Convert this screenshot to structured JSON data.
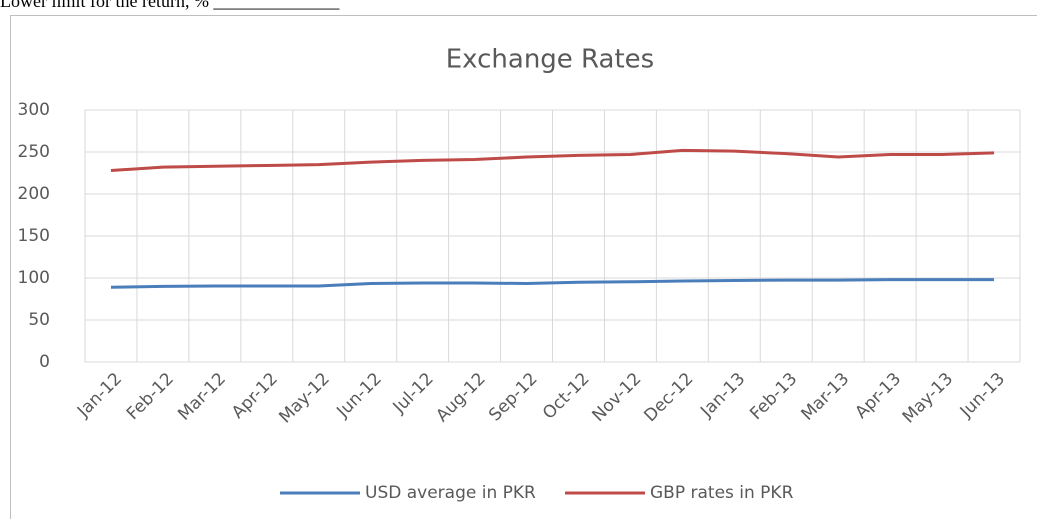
{
  "document": {
    "text": "Lower limit for the return, % ______________"
  },
  "chart_data": {
    "type": "line",
    "title": "Exchange Rates",
    "categories": [
      "Jan-12",
      "Feb-12",
      "Mar-12",
      "Apr-12",
      "May-12",
      "Jun-12",
      "Jul-12",
      "Aug-12",
      "Sep-12",
      "Oct-12",
      "Nov-12",
      "Dec-12",
      "Jan-13",
      "Feb-13",
      "Mar-13",
      "Apr-13",
      "May-13",
      "Jun-13"
    ],
    "series": [
      {
        "name": "USD average in PKR",
        "color": "#4a7ebb",
        "values": [
          89,
          90,
          90.5,
          90.5,
          90.5,
          93.5,
          94,
          94,
          93.5,
          95,
          95.5,
          96.5,
          97,
          97.5,
          97.5,
          98,
          98,
          98
        ]
      },
      {
        "name": "GBP rates in PKR",
        "color": "#be4b48",
        "values": [
          228,
          232,
          233,
          234,
          235,
          238,
          240,
          241,
          244,
          246,
          247,
          252,
          251,
          248,
          244,
          247,
          247,
          249
        ]
      }
    ],
    "ylim": [
      0,
      300
    ],
    "yticks": [
      0,
      50,
      100,
      150,
      200,
      250,
      300
    ],
    "grid": true,
    "legend": "bottom"
  }
}
